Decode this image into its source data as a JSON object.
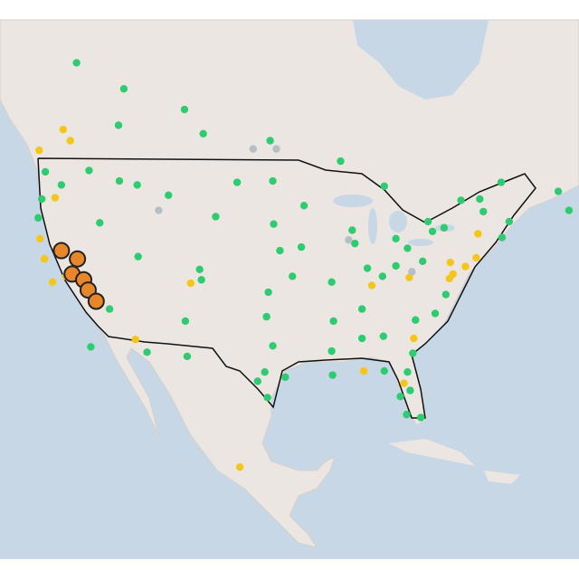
{
  "markers": [
    {
      "lat": 47.6,
      "lon": -122.3,
      "color": "#2ecc71"
    },
    {
      "lat": 45.5,
      "lon": -122.7,
      "color": "#2ecc71"
    },
    {
      "lat": 44.0,
      "lon": -123.1,
      "color": "#2ecc71"
    },
    {
      "lat": 46.6,
      "lon": -120.5,
      "color": "#2ecc71"
    },
    {
      "lat": 47.7,
      "lon": -117.4,
      "color": "#2ecc71"
    },
    {
      "lat": 43.6,
      "lon": -116.2,
      "color": "#2ecc71"
    },
    {
      "lat": 46.9,
      "lon": -114.0,
      "color": "#2ecc71"
    },
    {
      "lat": 45.8,
      "lon": -108.5,
      "color": "#2ecc71"
    },
    {
      "lat": 46.6,
      "lon": -112.0,
      "color": "#2ecc71"
    },
    {
      "lat": 40.8,
      "lon": -111.9,
      "color": "#2ecc71"
    },
    {
      "lat": 39.7,
      "lon": -105.0,
      "color": "#2ecc71"
    },
    {
      "lat": 38.8,
      "lon": -104.8,
      "color": "#2ecc71"
    },
    {
      "lat": 35.1,
      "lon": -106.6,
      "color": "#2ecc71"
    },
    {
      "lat": 32.2,
      "lon": -110.9,
      "color": "#2ecc71"
    },
    {
      "lat": 36.2,
      "lon": -115.1,
      "color": "#2ecc71"
    },
    {
      "lat": 39.5,
      "lon": -119.8,
      "color": "#2ecc71"
    },
    {
      "lat": 44.1,
      "lon": -103.2,
      "color": "#2ecc71"
    },
    {
      "lat": 46.8,
      "lon": -100.8,
      "color": "#2ecc71"
    },
    {
      "lat": 46.9,
      "lon": -96.8,
      "color": "#2ecc71"
    },
    {
      "lat": 43.5,
      "lon": -96.7,
      "color": "#2ecc71"
    },
    {
      "lat": 41.3,
      "lon": -96.0,
      "color": "#2ecc71"
    },
    {
      "lat": 39.1,
      "lon": -94.6,
      "color": "#2ecc71"
    },
    {
      "lat": 37.7,
      "lon": -97.3,
      "color": "#2ecc71"
    },
    {
      "lat": 35.5,
      "lon": -97.5,
      "color": "#2ecc71"
    },
    {
      "lat": 32.8,
      "lon": -96.8,
      "color": "#2ecc71"
    },
    {
      "lat": 29.8,
      "lon": -95.4,
      "color": "#2ecc71"
    },
    {
      "lat": 29.4,
      "lon": -98.5,
      "color": "#2ecc71"
    },
    {
      "lat": 30.3,
      "lon": -97.7,
      "color": "#2ecc71"
    },
    {
      "lat": 31.8,
      "lon": -106.4,
      "color": "#2ecc71"
    },
    {
      "lat": 27.8,
      "lon": -97.4,
      "color": "#2ecc71"
    },
    {
      "lat": 44.98,
      "lon": -93.3,
      "color": "#2ecc71"
    },
    {
      "lat": 41.6,
      "lon": -93.6,
      "color": "#2ecc71"
    },
    {
      "lat": 38.6,
      "lon": -90.2,
      "color": "#2ecc71"
    },
    {
      "lat": 41.9,
      "lon": -87.6,
      "color": "#2ecc71"
    },
    {
      "lat": 43.0,
      "lon": -87.9,
      "color": "#2ecc71"
    },
    {
      "lat": 42.3,
      "lon": -83.0,
      "color": "#2ecc71"
    },
    {
      "lat": 39.8,
      "lon": -86.2,
      "color": "#2ecc71"
    },
    {
      "lat": 39.1,
      "lon": -84.5,
      "color": "#2ecc71"
    },
    {
      "lat": 40.0,
      "lon": -83.0,
      "color": "#2ecc71"
    },
    {
      "lat": 41.5,
      "lon": -81.7,
      "color": "#2ecc71"
    },
    {
      "lat": 40.4,
      "lon": -80.0,
      "color": "#2ecc71"
    },
    {
      "lat": 36.2,
      "lon": -86.8,
      "color": "#2ecc71"
    },
    {
      "lat": 35.1,
      "lon": -90.0,
      "color": "#2ecc71"
    },
    {
      "lat": 33.5,
      "lon": -86.8,
      "color": "#2ecc71"
    },
    {
      "lat": 32.3,
      "lon": -90.2,
      "color": "#2ecc71"
    },
    {
      "lat": 30.0,
      "lon": -90.1,
      "color": "#2ecc71"
    },
    {
      "lat": 33.7,
      "lon": -84.4,
      "color": "#2ecc71"
    },
    {
      "lat": 35.2,
      "lon": -80.8,
      "color": "#2ecc71"
    },
    {
      "lat": 35.8,
      "lon": -78.6,
      "color": "#2ecc71"
    },
    {
      "lat": 32.1,
      "lon": -81.1,
      "color": "#2ecc71"
    },
    {
      "lat": 30.3,
      "lon": -81.7,
      "color": "#2ecc71"
    },
    {
      "lat": 28.5,
      "lon": -81.4,
      "color": "#2ecc71"
    },
    {
      "lat": 27.9,
      "lon": -82.5,
      "color": "#2ecc71"
    },
    {
      "lat": 25.8,
      "lon": -80.2,
      "color": "#2ecc71"
    },
    {
      "lat": 26.1,
      "lon": -81.8,
      "color": "#2ecc71"
    },
    {
      "lat": 30.4,
      "lon": -84.3,
      "color": "#2ecc71"
    },
    {
      "lat": 37.5,
      "lon": -77.4,
      "color": "#2ecc71"
    },
    {
      "lat": 42.4,
      "lon": -71.1,
      "color": "#2ecc71"
    },
    {
      "lat": 43.7,
      "lon": -70.3,
      "color": "#2ecc71"
    },
    {
      "lat": 44.5,
      "lon": -73.2,
      "color": "#2ecc71"
    },
    {
      "lat": 43.2,
      "lon": -77.6,
      "color": "#2ecc71"
    },
    {
      "lat": 42.9,
      "lon": -78.9,
      "color": "#2ecc71"
    },
    {
      "lat": 46.8,
      "lon": -71.2,
      "color": "#2ecc71"
    },
    {
      "lat": 45.5,
      "lon": -73.6,
      "color": "#2ecc71"
    },
    {
      "lat": 45.4,
      "lon": -75.7,
      "color": "#2ecc71"
    },
    {
      "lat": 43.7,
      "lon": -79.4,
      "color": "#2ecc71"
    },
    {
      "lat": 46.5,
      "lon": -84.3,
      "color": "#2ecc71"
    },
    {
      "lat": 48.4,
      "lon": -89.2,
      "color": "#2ecc71"
    },
    {
      "lat": 49.9,
      "lon": -97.1,
      "color": "#2ecc71"
    },
    {
      "lat": 50.4,
      "lon": -104.6,
      "color": "#2ecc71"
    },
    {
      "lat": 52.1,
      "lon": -106.7,
      "color": "#2ecc71"
    },
    {
      "lat": 53.5,
      "lon": -113.5,
      "color": "#2ecc71"
    },
    {
      "lat": 51.0,
      "lon": -114.1,
      "color": "#2ecc71"
    },
    {
      "lat": 55.2,
      "lon": -118.8,
      "color": "#2ecc71"
    },
    {
      "lat": 46.1,
      "lon": -64.8,
      "color": "#2ecc71"
    },
    {
      "lat": 44.6,
      "lon": -63.6,
      "color": "#2ecc71"
    },
    {
      "lat": 32.7,
      "lon": -117.2,
      "color": "#2ecc71"
    },
    {
      "lat": 49.2,
      "lon": -123.0,
      "color": "#f5c518"
    },
    {
      "lat": 50.7,
      "lon": -120.3,
      "color": "#f5c518"
    },
    {
      "lat": 49.9,
      "lon": -119.5,
      "color": "#f5c518"
    },
    {
      "lat": 45.6,
      "lon": -121.2,
      "color": "#f5c518"
    },
    {
      "lat": 42.3,
      "lon": -122.9,
      "color": "#f5c518"
    },
    {
      "lat": 40.6,
      "lon": -122.4,
      "color": "#f5c518"
    },
    {
      "lat": 39.1,
      "lon": -120.0,
      "color": "#f5c518"
    },
    {
      "lat": 38.6,
      "lon": -121.5,
      "color": "#f5c518"
    },
    {
      "lat": 38.5,
      "lon": -106.0,
      "color": "#f5c518"
    },
    {
      "lat": 40.7,
      "lon": -74.0,
      "color": "#f5c518"
    },
    {
      "lat": 39.95,
      "lon": -75.2,
      "color": "#f5c518"
    },
    {
      "lat": 39.3,
      "lon": -76.6,
      "color": "#f5c518"
    },
    {
      "lat": 38.9,
      "lon": -77.0,
      "color": "#f5c518"
    },
    {
      "lat": 40.3,
      "lon": -76.9,
      "color": "#f5c518"
    },
    {
      "lat": 38.3,
      "lon": -85.7,
      "color": "#f5c518"
    },
    {
      "lat": 39.0,
      "lon": -81.5,
      "color": "#f5c518"
    },
    {
      "lat": 33.5,
      "lon": -81.0,
      "color": "#f5c518"
    },
    {
      "lat": 30.4,
      "lon": -86.6,
      "color": "#f5c518"
    },
    {
      "lat": 29.2,
      "lon": -82.1,
      "color": "#f5c518"
    },
    {
      "lat": 42.7,
      "lon": -73.8,
      "color": "#f5c518"
    },
    {
      "lat": 33.4,
      "lon": -112.2,
      "color": "#f5c518"
    },
    {
      "lat": 20.7,
      "lon": -100.5,
      "color": "#f5c518"
    },
    {
      "lat": 49.3,
      "lon": -99.0,
      "color": "#b8bec6"
    },
    {
      "lat": 49.3,
      "lon": -96.4,
      "color": "#b8bec6"
    },
    {
      "lat": 42.2,
      "lon": -88.3,
      "color": "#b8bec6"
    },
    {
      "lat": 44.6,
      "lon": -109.6,
      "color": "#b8bec6"
    },
    {
      "lat": 39.5,
      "lon": -81.2,
      "color": "#b8bec6"
    },
    {
      "lat": 41.3,
      "lon": -120.5,
      "color": "#e8862a"
    },
    {
      "lat": 40.6,
      "lon": -118.7,
      "color": "#e8862a"
    },
    {
      "lat": 39.3,
      "lon": -119.3,
      "color": "#e8862a"
    },
    {
      "lat": 38.8,
      "lon": -118.0,
      "color": "#e8862a"
    },
    {
      "lat": 37.9,
      "lon": -117.5,
      "color": "#e8862a"
    },
    {
      "lat": 36.9,
      "lon": -116.6,
      "color": "#e8862a"
    }
  ]
}
